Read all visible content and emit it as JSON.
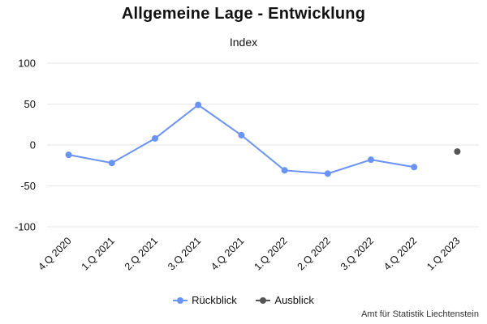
{
  "chart_data": {
    "type": "line",
    "title": "Allgemeine Lage - Entwicklung",
    "subtitle": "Index",
    "categories": [
      "4.Q 2020",
      "1.Q 2021",
      "2.Q 2021",
      "3.Q 2021",
      "4.Q 2021",
      "1.Q 2022",
      "2.Q 2022",
      "3.Q 2022",
      "4.Q 2022",
      "1.Q 2023"
    ],
    "ylim": [
      -100,
      100
    ],
    "yticks": [
      -100,
      -50,
      0,
      50,
      100
    ],
    "grid": true,
    "legend_placement": "bottom-center",
    "series": [
      {
        "name": "Rückblick",
        "color": "#6a93f5",
        "values": [
          -12,
          -22,
          8,
          49,
          12,
          -31,
          -35,
          -18,
          -27,
          null
        ]
      },
      {
        "name": "Ausblick",
        "color": "#555555",
        "values": [
          null,
          null,
          null,
          null,
          null,
          null,
          null,
          null,
          null,
          -8
        ]
      }
    ]
  },
  "credits": "Amt für Statistik Liechtenstein"
}
